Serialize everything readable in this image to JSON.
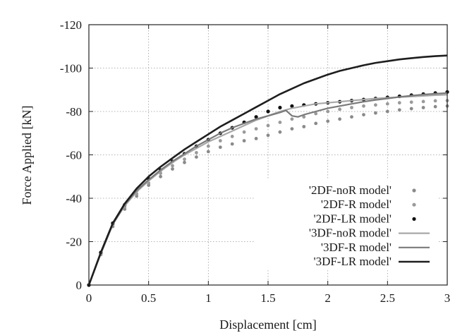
{
  "chart_data": {
    "type": "line",
    "title": "",
    "xlabel": "Displacement [cm]",
    "ylabel": "Force Applied [kN]",
    "xlim": [
      0,
      3
    ],
    "ylim": [
      0,
      -120
    ],
    "y_axis_inverted": true,
    "grid": true,
    "legend_position": "bottom-right",
    "x_ticks": [
      "0",
      "0.5",
      "1",
      "1.5",
      "2",
      "2.5",
      "3"
    ],
    "x_tick_values": [
      0,
      0.5,
      1,
      1.5,
      2,
      2.5,
      3
    ],
    "y_ticks": [
      "-120",
      "-100",
      "-80",
      "-60",
      "-40",
      "-20",
      "0"
    ],
    "y_tick_values": [
      -120,
      -100,
      -80,
      -60,
      -40,
      -20,
      0
    ],
    "series": [
      {
        "name": "'2DF-noR model'",
        "style": "dots",
        "color": "#8a8a8a",
        "x": [
          0,
          0.1,
          0.2,
          0.3,
          0.4,
          0.5,
          0.6,
          0.7,
          0.8,
          0.9,
          1.0,
          1.1,
          1.2,
          1.3,
          1.4,
          1.5,
          1.6,
          1.7,
          1.8,
          1.9,
          2.0,
          2.1,
          2.2,
          2.3,
          2.4,
          2.5,
          2.6,
          2.7,
          2.8,
          2.9,
          3.0
        ],
        "y": [
          0,
          -14,
          -27,
          -35,
          -41,
          -46,
          -50,
          -53.5,
          -56.5,
          -59,
          -61.5,
          -63.5,
          -65,
          -66.5,
          -67.5,
          -69,
          -70.5,
          -72,
          -73,
          -74.5,
          -75.5,
          -76.5,
          -77.5,
          -78.5,
          -79.3,
          -80,
          -80.7,
          -81.3,
          -81.8,
          -82.2,
          -82.5
        ]
      },
      {
        "name": "'2DF-R model'",
        "style": "dots",
        "color": "#9a9a9a",
        "x": [
          0,
          0.1,
          0.2,
          0.3,
          0.4,
          0.5,
          0.6,
          0.7,
          0.8,
          0.9,
          1.0,
          1.1,
          1.2,
          1.3,
          1.4,
          1.5,
          1.6,
          1.7,
          1.8,
          1.9,
          2.0,
          2.1,
          2.2,
          2.3,
          2.4,
          2.5,
          2.6,
          2.7,
          2.8,
          2.9,
          3.0
        ],
        "y": [
          0,
          -14.5,
          -28,
          -36,
          -42,
          -47,
          -51.5,
          -55,
          -58,
          -61,
          -64,
          -66.5,
          -68.5,
          -70.5,
          -72,
          -73.5,
          -75,
          -76.5,
          -77.5,
          -79,
          -80,
          -81,
          -81.8,
          -82.5,
          -83,
          -83.5,
          -84,
          -84.3,
          -84.6,
          -84.9,
          -85
        ]
      },
      {
        "name": "'2DF-LR model'",
        "style": "dots",
        "color": "#111111",
        "x": [
          0,
          0.1,
          0.2,
          0.3,
          0.4,
          0.5,
          0.6,
          0.7,
          0.8,
          0.9,
          1.0,
          1.1,
          1.2,
          1.3,
          1.4,
          1.5,
          1.6,
          1.7,
          1.8,
          1.9,
          2.0,
          2.1,
          2.2,
          2.3,
          2.4,
          2.5,
          2.6,
          2.7,
          2.8,
          2.9,
          3.0
        ],
        "y": [
          0,
          -15,
          -28.5,
          -37,
          -43.5,
          -49,
          -53,
          -57,
          -60.5,
          -64,
          -67,
          -70,
          -72.5,
          -75,
          -77.5,
          -80,
          -81.8,
          -82.5,
          -83,
          -83.5,
          -84,
          -84.5,
          -85,
          -85.5,
          -86,
          -86.5,
          -87,
          -87.5,
          -88,
          -88.5,
          -89
        ]
      },
      {
        "name": "'3DF-noR model'",
        "style": "line",
        "color": "#a8a8a8",
        "x": [
          0,
          0.1,
          0.2,
          0.3,
          0.4,
          0.5,
          0.6,
          0.7,
          0.8,
          0.9,
          1.0,
          1.1,
          1.2,
          1.3,
          1.4,
          1.5,
          1.6,
          1.7,
          1.8,
          1.9,
          2.0,
          2.1,
          2.2,
          2.3,
          2.4,
          2.5,
          2.6,
          2.7,
          2.8,
          2.9,
          3.0
        ],
        "y": [
          0,
          -14.5,
          -28,
          -36.5,
          -43,
          -48,
          -52.5,
          -56.5,
          -60,
          -63,
          -66,
          -68.5,
          -71,
          -73.5,
          -76,
          -78,
          -80,
          -81.5,
          -82.5,
          -83.5,
          -84,
          -84.5,
          -85,
          -85.5,
          -86,
          -86.3,
          -86.6,
          -86.9,
          -87.2,
          -87.5,
          -87.7
        ]
      },
      {
        "name": "'3DF-R model'",
        "style": "line",
        "color": "#7a7a7a",
        "x": [
          0,
          0.1,
          0.2,
          0.3,
          0.4,
          0.5,
          0.6,
          0.7,
          0.8,
          0.9,
          1.0,
          1.1,
          1.2,
          1.3,
          1.4,
          1.5,
          1.6,
          1.65,
          1.7,
          1.75,
          1.8,
          1.9,
          2.0,
          2.1,
          2.2,
          2.3,
          2.4,
          2.5,
          2.6,
          2.7,
          2.8,
          2.9,
          3.0
        ],
        "y": [
          0,
          -14.5,
          -28,
          -37,
          -43.5,
          -48.5,
          -53,
          -57,
          -60.5,
          -64,
          -67,
          -70,
          -72.5,
          -74.5,
          -76.5,
          -78,
          -79.5,
          -80.5,
          -78,
          -77.5,
          -78.5,
          -80,
          -81.5,
          -82.5,
          -83.5,
          -84.5,
          -85.3,
          -86,
          -86.7,
          -87.3,
          -87.8,
          -88.2,
          -88.5
        ]
      },
      {
        "name": "'3DF-LR model'",
        "style": "line",
        "color": "#1e1e1e",
        "x": [
          0,
          0.1,
          0.2,
          0.3,
          0.4,
          0.5,
          0.6,
          0.7,
          0.8,
          0.9,
          1.0,
          1.1,
          1.2,
          1.3,
          1.4,
          1.5,
          1.6,
          1.7,
          1.8,
          1.9,
          2.0,
          2.1,
          2.2,
          2.3,
          2.4,
          2.5,
          2.6,
          2.7,
          2.8,
          2.9,
          3.0
        ],
        "y": [
          0,
          -15,
          -28.5,
          -37.5,
          -44.5,
          -50,
          -54.5,
          -58.5,
          -62.5,
          -66,
          -69.5,
          -73,
          -76,
          -79,
          -82,
          -85,
          -88,
          -90.5,
          -93,
          -95,
          -97,
          -98.7,
          -100,
          -101.3,
          -102.4,
          -103.2,
          -104,
          -104.6,
          -105.1,
          -105.5,
          -105.8
        ]
      }
    ]
  }
}
